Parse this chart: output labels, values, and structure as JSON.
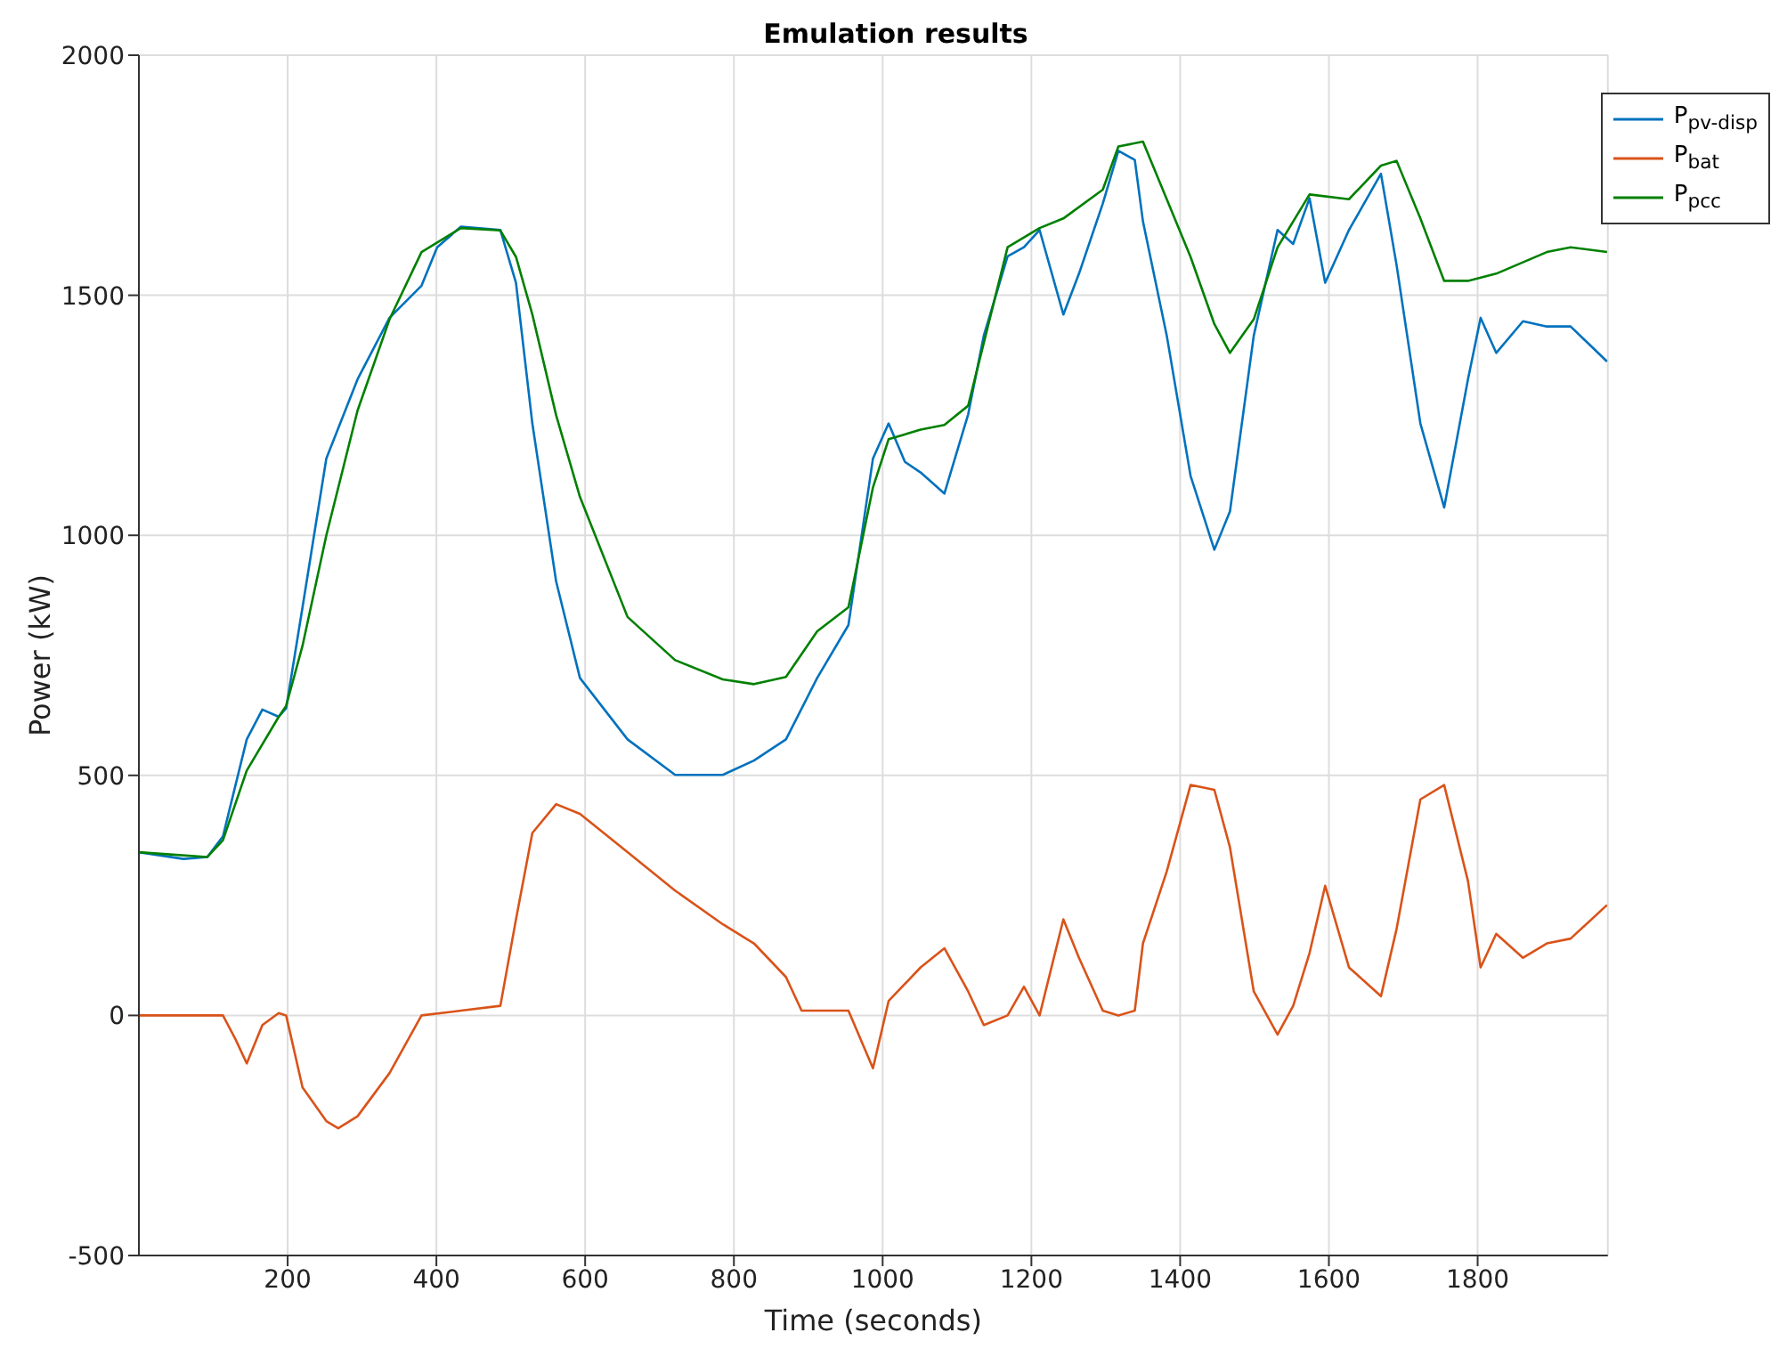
{
  "chart_data": {
    "type": "line",
    "title": "Emulation results",
    "xlabel": "Time (seconds)",
    "ylabel": "Power (kW)",
    "xlim": [
      0,
      1975
    ],
    "xticks": [
      200,
      400,
      600,
      800,
      1000,
      1200,
      1400,
      1600,
      1800
    ],
    "ylim": [
      -500,
      2000
    ],
    "yticks": [
      -500,
      0,
      500,
      1000,
      1500,
      2000
    ],
    "grid": true,
    "legend": "top right",
    "marker": "none",
    "line_style": "solid",
    "series": [
      {
        "name": "P$_{pv-disp}$",
        "color": "#0072bd",
        "x": [
          0,
          60,
          92,
          113,
          145,
          166,
          188,
          198,
          220,
          252,
          294,
          337,
          380,
          401,
          433,
          486,
          507,
          529,
          561,
          593,
          657,
          721,
          785,
          827,
          870,
          912,
          954,
          987,
          1008,
          1030,
          1051,
          1083,
          1115,
          1136,
          1168,
          1190,
          1211,
          1243,
          1264,
          1296,
          1317,
          1339,
          1350,
          1382,
          1414,
          1446,
          1467,
          1499,
          1531,
          1552,
          1574,
          1595,
          1627,
          1670,
          1691,
          1723,
          1755,
          1787,
          1804,
          1825,
          1861,
          1893,
          1925,
          1974
        ],
        "values": [
          340,
          326,
          330,
          373,
          575,
          637,
          622,
          640,
          850,
          1160,
          1325,
          1453,
          1520,
          1600,
          1643,
          1636,
          1526,
          1233,
          904,
          703,
          575,
          501,
          501,
          531,
          575,
          703,
          813,
          1160,
          1233,
          1153,
          1131,
          1087,
          1252,
          1416,
          1581,
          1600,
          1636,
          1460,
          1545,
          1691,
          1801,
          1782,
          1654,
          1416,
          1124,
          970,
          1050,
          1416,
          1636,
          1607,
          1702,
          1526,
          1636,
          1753,
          1563,
          1233,
          1058,
          1325,
          1453,
          1380,
          1446,
          1435,
          1435,
          1362
        ]
      },
      {
        "name": "P$_{bat}$",
        "color": "#d95319",
        "x": [
          0,
          113,
          130,
          145,
          166,
          188,
          198,
          220,
          252,
          268,
          294,
          337,
          380,
          433,
          486,
          507,
          529,
          561,
          593,
          657,
          721,
          785,
          827,
          870,
          891,
          954,
          987,
          1008,
          1051,
          1083,
          1115,
          1136,
          1168,
          1190,
          1211,
          1243,
          1264,
          1296,
          1317,
          1339,
          1350,
          1382,
          1414,
          1446,
          1467,
          1499,
          1531,
          1552,
          1574,
          1595,
          1627,
          1670,
          1691,
          1723,
          1755,
          1787,
          1804,
          1825,
          1861,
          1893,
          1925,
          1974
        ],
        "values": [
          0,
          0,
          -50,
          -100,
          -20,
          5,
          0,
          -150,
          -220,
          -235,
          -210,
          -120,
          0,
          10,
          20,
          200,
          380,
          440,
          420,
          340,
          260,
          190,
          150,
          80,
          10,
          10,
          -110,
          30,
          100,
          140,
          50,
          -20,
          0,
          60,
          0,
          200,
          120,
          10,
          0,
          10,
          150,
          300,
          480,
          470,
          350,
          50,
          -40,
          20,
          130,
          270,
          100,
          40,
          180,
          450,
          480,
          280,
          100,
          170,
          120,
          150,
          160,
          230
        ]
      },
      {
        "name": "P$_{pcc}$",
        "color": "#008000",
        "x": [
          0,
          92,
          113,
          145,
          188,
          198,
          220,
          252,
          294,
          337,
          380,
          433,
          486,
          507,
          529,
          561,
          593,
          657,
          721,
          785,
          827,
          870,
          912,
          954,
          987,
          1008,
          1051,
          1083,
          1115,
          1168,
          1211,
          1243,
          1296,
          1317,
          1350,
          1382,
          1414,
          1446,
          1467,
          1499,
          1531,
          1574,
          1627,
          1670,
          1691,
          1723,
          1755,
          1787,
          1825,
          1893,
          1925,
          1974
        ],
        "values": [
          340,
          330,
          365,
          510,
          622,
          645,
          770,
          1000,
          1260,
          1450,
          1590,
          1640,
          1635,
          1580,
          1460,
          1250,
          1080,
          830,
          740,
          700,
          690,
          705,
          800,
          850,
          1100,
          1200,
          1220,
          1230,
          1270,
          1600,
          1640,
          1660,
          1720,
          1810,
          1820,
          1700,
          1580,
          1440,
          1380,
          1450,
          1600,
          1710,
          1700,
          1770,
          1780,
          1660,
          1530,
          1530,
          1545,
          1590,
          1600,
          1590
        ]
      }
    ]
  }
}
